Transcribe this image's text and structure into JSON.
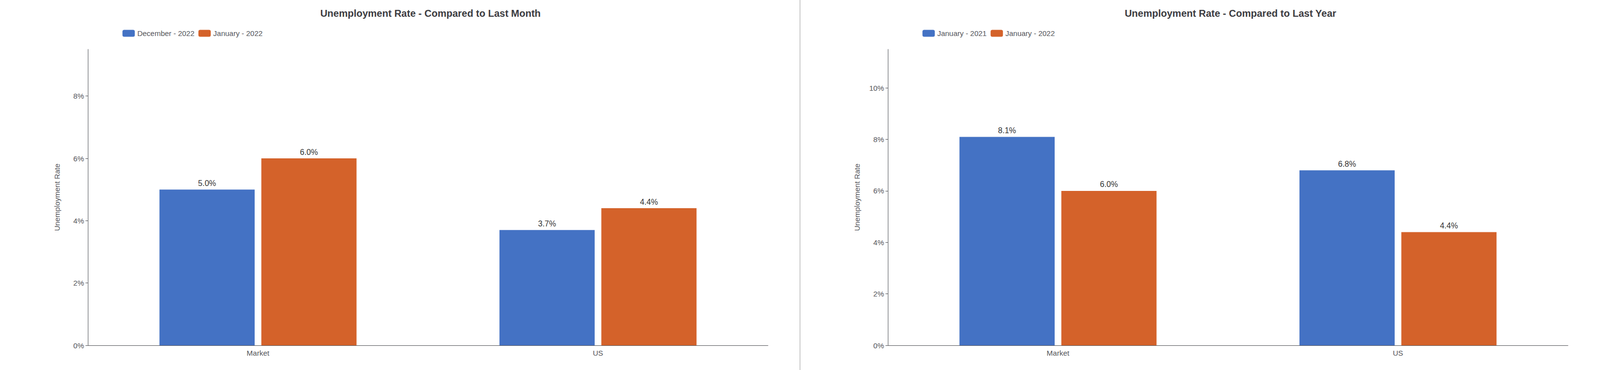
{
  "chart_data": [
    {
      "type": "bar",
      "title": "Unemployment Rate - Compared to Last Month",
      "ylabel": "Unemployment Rate",
      "categories": [
        "Market",
        "US"
      ],
      "series": [
        {
          "name": "December - 2022",
          "color": "#4472C4",
          "values": [
            5.0,
            3.7
          ],
          "value_labels": [
            "5.0%",
            "3.7%"
          ]
        },
        {
          "name": "January - 2022",
          "color": "#D4622A",
          "values": [
            6.0,
            4.4
          ],
          "value_labels": [
            "6.0%",
            "4.4%"
          ]
        }
      ],
      "ylim": [
        0,
        9.5
      ],
      "yticks": [
        {
          "value": 0,
          "label": "0%"
        },
        {
          "value": 2,
          "label": "2%"
        },
        {
          "value": 4,
          "label": "4%"
        },
        {
          "value": 6,
          "label": "6%"
        },
        {
          "value": 8,
          "label": "8%"
        }
      ],
      "grid": false,
      "legend": "upper left",
      "data_labels": true
    },
    {
      "type": "bar",
      "title": "Unemployment Rate - Compared to Last Year",
      "ylabel": "Unemployment Rate",
      "categories": [
        "Market",
        "US"
      ],
      "series": [
        {
          "name": "January - 2021",
          "color": "#4472C4",
          "values": [
            8.1,
            6.8
          ],
          "value_labels": [
            "8.1%",
            "6.8%"
          ]
        },
        {
          "name": "January - 2022",
          "color": "#D4622A",
          "values": [
            6.0,
            4.4
          ],
          "value_labels": [
            "6.0%",
            "4.4%"
          ]
        }
      ],
      "ylim": [
        0,
        11.5
      ],
      "yticks": [
        {
          "value": 0,
          "label": "0%"
        },
        {
          "value": 2,
          "label": "2%"
        },
        {
          "value": 4,
          "label": "4%"
        },
        {
          "value": 6,
          "label": "6%"
        },
        {
          "value": 8,
          "label": "8%"
        },
        {
          "value": 10,
          "label": "10%"
        }
      ],
      "grid": false,
      "legend": "upper left",
      "data_labels": true
    }
  ]
}
